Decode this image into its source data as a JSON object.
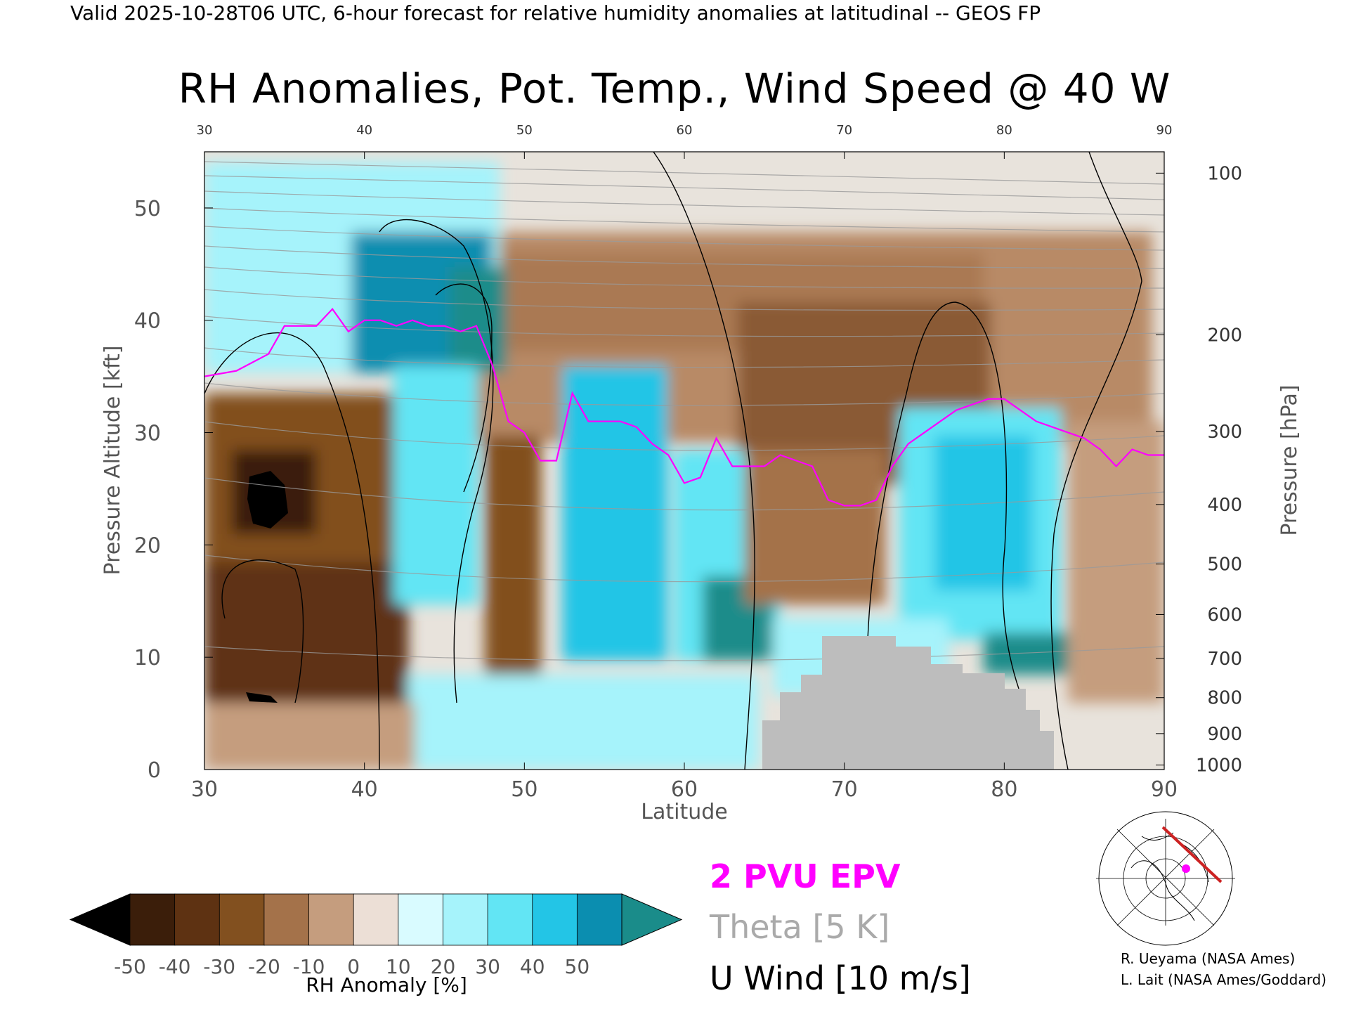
{
  "header": "Valid 2025-10-28T06 UTC, 6-hour forecast for relative humidity anomalies at latitudinal -- GEOS FP",
  "chart_data": {
    "type": "heatmap",
    "title": "RH Anomalies, Pot. Temp., Wind Speed @ 40 W",
    "xlabel": "Latitude",
    "ylabel": "Pressure Altitude [kft]",
    "ylabel_right": "Pressure [hPa]",
    "xlim": [
      30,
      90
    ],
    "ylim": [
      0,
      55
    ],
    "x_ticks": [
      30,
      40,
      50,
      60,
      70,
      80,
      90
    ],
    "y_ticks": [
      0,
      10,
      20,
      30,
      40,
      50
    ],
    "pressure_ticks": [
      {
        "hpa": "100",
        "kft": 53.1
      },
      {
        "hpa": "200",
        "kft": 38.7
      },
      {
        "hpa": "300",
        "kft": 30.1
      },
      {
        "hpa": "400",
        "kft": 23.6
      },
      {
        "hpa": "500",
        "kft": 18.3
      },
      {
        "hpa": "600",
        "kft": 13.8
      },
      {
        "hpa": "700",
        "kft": 9.9
      },
      {
        "hpa": "800",
        "kft": 6.4
      },
      {
        "hpa": "900",
        "kft": 3.2
      },
      {
        "hpa": "1000",
        "kft": 0.4
      }
    ],
    "colorbar": {
      "label": "RH Anomaly [%]",
      "ticks": [
        "-50",
        "-40",
        "-30",
        "-20",
        "-10",
        "0",
        "10",
        "20",
        "30",
        "40",
        "50"
      ],
      "colors": [
        "#3b1e0a",
        "#5e3212",
        "#82501f",
        "#a4724a",
        "#c59d7e",
        "#ecdfd6",
        "#d9fbff",
        "#a6f3fb",
        "#62e5f4",
        "#23c5e6",
        "#0b8eb0"
      ],
      "under_color": "#000000",
      "over_color": "#1a8c8a"
    },
    "epv_2pvu": {
      "lat": [
        30,
        32,
        34,
        35,
        37,
        38,
        39,
        40,
        41,
        42,
        43,
        44,
        45,
        46,
        47,
        48,
        49,
        50,
        51,
        52,
        53,
        54,
        55,
        56,
        57,
        58,
        59,
        60,
        61,
        62,
        63,
        64,
        65,
        66,
        67,
        68,
        69,
        70,
        71,
        72,
        73,
        74,
        75,
        76,
        77,
        78,
        79,
        80,
        81,
        82,
        83,
        84,
        85,
        86,
        87,
        88,
        89,
        90
      ],
      "kft": [
        35,
        35.5,
        37,
        39.5,
        39.5,
        41,
        39,
        40,
        40,
        39.5,
        40,
        39.5,
        39.5,
        39,
        39.5,
        36,
        31,
        30,
        27.5,
        27.5,
        33.5,
        31,
        31,
        31,
        30.5,
        29,
        28,
        25.5,
        26,
        29.5,
        27,
        27,
        27,
        28,
        27.5,
        27,
        24,
        23.5,
        23.5,
        24,
        27,
        29,
        30,
        31,
        32,
        32.5,
        33,
        33,
        32,
        31,
        30.5,
        30,
        29.5,
        28.5,
        27,
        28.5,
        28,
        28
      ]
    },
    "theta_contours_K": [
      "280",
      "290",
      "300",
      "310",
      "320",
      "330",
      "340",
      "350",
      "360",
      "370",
      "380",
      "390",
      "400",
      "410",
      "420"
    ],
    "u_wind_contours_ms": [
      "0",
      "10",
      "30"
    ],
    "legend": [
      "2 PVU EPV",
      "Theta [5 K]",
      "U Wind [10 m/s]"
    ],
    "legend_position": "bottom-right",
    "grid": false
  },
  "credits": [
    "R. Ueyama (NASA Ames)",
    "L. Lait (NASA Ames/Goddard)"
  ]
}
